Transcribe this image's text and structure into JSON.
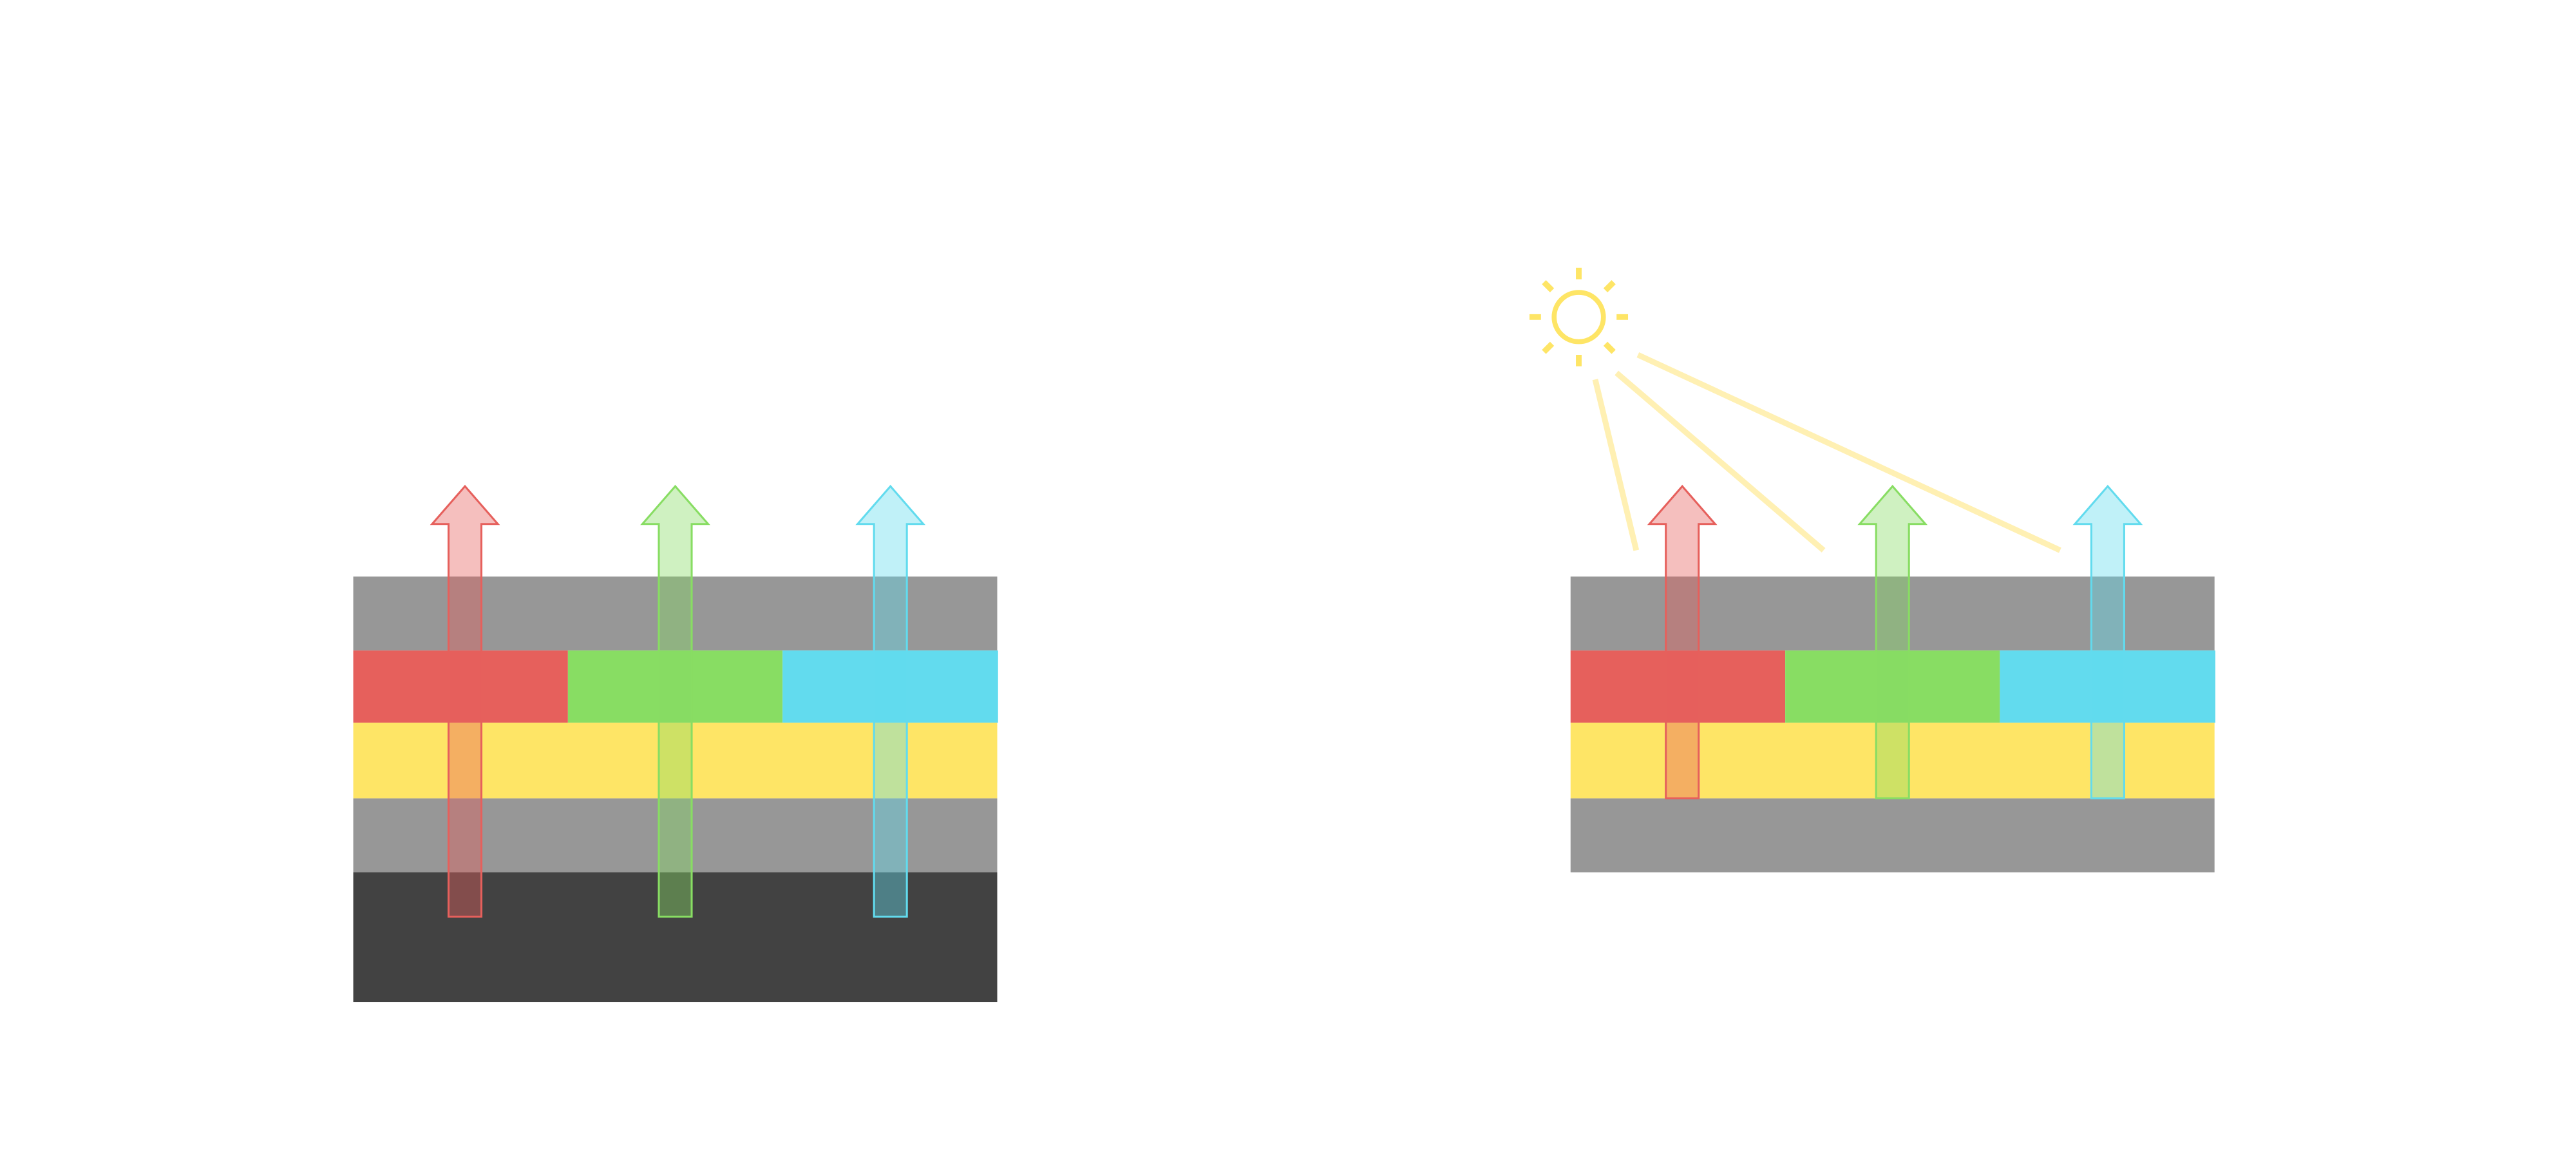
{
  "colors": {
    "background": "#ffffff",
    "layer_gray": "#979797",
    "layer_dark": "#424242",
    "layer_yellow": "#fee566",
    "subpixel_red": "#e6605c",
    "subpixel_green": "#88dd63",
    "subpixel_cyan": "#62dbee",
    "arrow_red": "#e6605c",
    "arrow_green": "#88dd63",
    "arrow_cyan": "#62dbee",
    "sun": "#fee566",
    "light_ray": "#fff0b3"
  },
  "panels": [
    {
      "id": "left-stack",
      "has_backlight_layer": true,
      "has_sun": false
    },
    {
      "id": "right-stack",
      "has_backlight_layer": false,
      "has_sun": true
    }
  ],
  "icons": {
    "sun": "sun-icon"
  }
}
